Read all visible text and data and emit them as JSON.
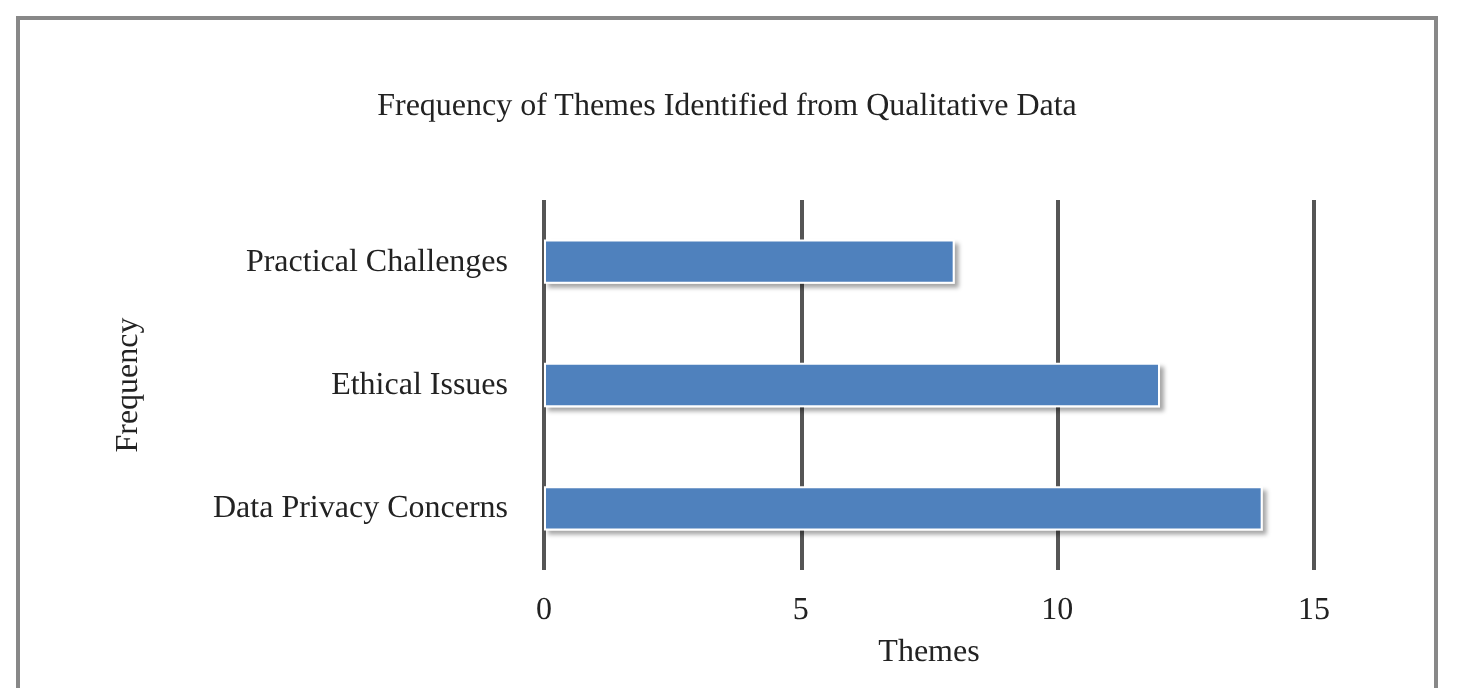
{
  "chart_data": {
    "type": "bar",
    "orientation": "horizontal",
    "title": "Frequency of Themes Identified from Qualitative Data",
    "xlabel": "Themes",
    "ylabel": "Frequency",
    "categories": [
      "Practical Challenges",
      "Ethical Issues",
      "Data Privacy Concerns"
    ],
    "values": [
      8,
      12,
      14
    ],
    "color": "#4f81bd",
    "xlim": [
      0,
      15
    ],
    "xticks": [
      0,
      5,
      10,
      15
    ],
    "grid": "x"
  }
}
